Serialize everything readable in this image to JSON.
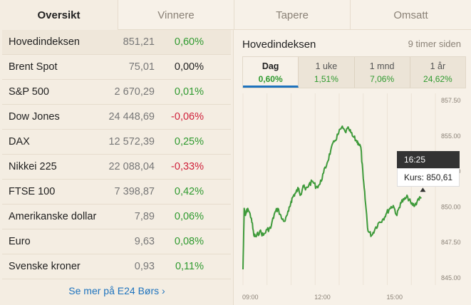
{
  "tabs": [
    {
      "label": "Oversikt",
      "active": true
    },
    {
      "label": "Vinnere",
      "active": false
    },
    {
      "label": "Tapere",
      "active": false
    },
    {
      "label": "Omsatt",
      "active": false
    }
  ],
  "rows": [
    {
      "name": "Hovedindeksen",
      "price": "851,21",
      "change": "0,60%",
      "dir": "pos"
    },
    {
      "name": "Brent Spot",
      "price": "75,01",
      "change": "0,00%",
      "dir": "zero"
    },
    {
      "name": "S&P 500",
      "price": "2 670,29",
      "change": "0,01%",
      "dir": "pos"
    },
    {
      "name": "Dow Jones",
      "price": "24 448,69",
      "change": "-0,06%",
      "dir": "neg"
    },
    {
      "name": "DAX",
      "price": "12 572,39",
      "change": "0,25%",
      "dir": "pos"
    },
    {
      "name": "Nikkei 225",
      "price": "22 088,04",
      "change": "-0,33%",
      "dir": "neg"
    },
    {
      "name": "FTSE 100",
      "price": "7 398,87",
      "change": "0,42%",
      "dir": "pos"
    },
    {
      "name": "Amerikanske dollar",
      "price": "7,89",
      "change": "0,06%",
      "dir": "pos"
    },
    {
      "name": "Euro",
      "price": "9,63",
      "change": "0,08%",
      "dir": "pos"
    },
    {
      "name": "Svenske kroner",
      "price": "0,93",
      "change": "0,11%",
      "dir": "pos"
    }
  ],
  "more_link": "Se mer på E24 Børs ›",
  "chart_panel": {
    "title": "Hovedindeksen",
    "updated": "9 timer siden",
    "periods": [
      {
        "label": "Dag",
        "value": "0,60%",
        "active": true
      },
      {
        "label": "1 uke",
        "value": "1,51%",
        "active": false
      },
      {
        "label": "1 mnd",
        "value": "7,06%",
        "active": false
      },
      {
        "label": "1 år",
        "value": "24,62%",
        "active": false
      }
    ],
    "tooltip": {
      "time": "16:25",
      "value": "Kurs: 850,61"
    }
  },
  "chart_data": {
    "type": "line",
    "title": "Hovedindeksen",
    "xlabel": "",
    "ylabel": "",
    "x_ticks": [
      "09:00",
      "12:00",
      "15:00"
    ],
    "y_ticks": [
      "857.50",
      "855.00",
      "852.50",
      "850.00",
      "847.50",
      "845.00"
    ],
    "ylim": [
      845,
      857.5
    ],
    "xlim": [
      9.0,
      17.0
    ],
    "grid": "vertical",
    "color": "#3e9a3a",
    "series": [
      {
        "x": [
          9.0,
          9.05,
          9.1,
          9.2,
          9.35,
          9.45,
          9.55,
          9.7,
          9.85,
          10.0,
          10.15,
          10.3,
          10.45,
          10.6,
          10.75,
          10.9,
          11.0,
          11.1,
          11.2,
          11.3,
          11.4,
          11.5,
          11.6,
          11.75,
          11.9,
          12.05,
          12.2,
          12.35,
          12.5,
          12.65,
          12.8,
          12.95,
          13.1,
          13.25,
          13.4,
          13.55,
          13.7,
          13.8,
          13.9,
          14.0,
          14.1,
          14.2,
          14.35,
          14.5,
          14.65,
          14.8,
          14.95,
          15.1,
          15.25,
          15.4,
          15.55,
          15.7,
          15.85,
          16.0,
          16.15,
          16.3,
          16.42
        ],
        "y": [
          845.6,
          849.9,
          849.4,
          849.9,
          849.2,
          848.0,
          847.9,
          848.3,
          848.0,
          848.4,
          848.5,
          849.5,
          849.9,
          849.2,
          849.0,
          849.7,
          850.4,
          850.8,
          851.0,
          851.3,
          850.9,
          851.5,
          851.2,
          851.6,
          851.8,
          851.4,
          851.6,
          852.4,
          853.1,
          854.0,
          854.6,
          855.1,
          855.6,
          855.3,
          855.5,
          855.0,
          854.7,
          854.5,
          854.2,
          852.0,
          850.2,
          848.3,
          848.0,
          848.5,
          848.9,
          849.1,
          849.5,
          849.9,
          850.1,
          849.4,
          850.3,
          850.5,
          850.7,
          850.2,
          850.1,
          850.6,
          850.61
        ]
      }
    ]
  }
}
